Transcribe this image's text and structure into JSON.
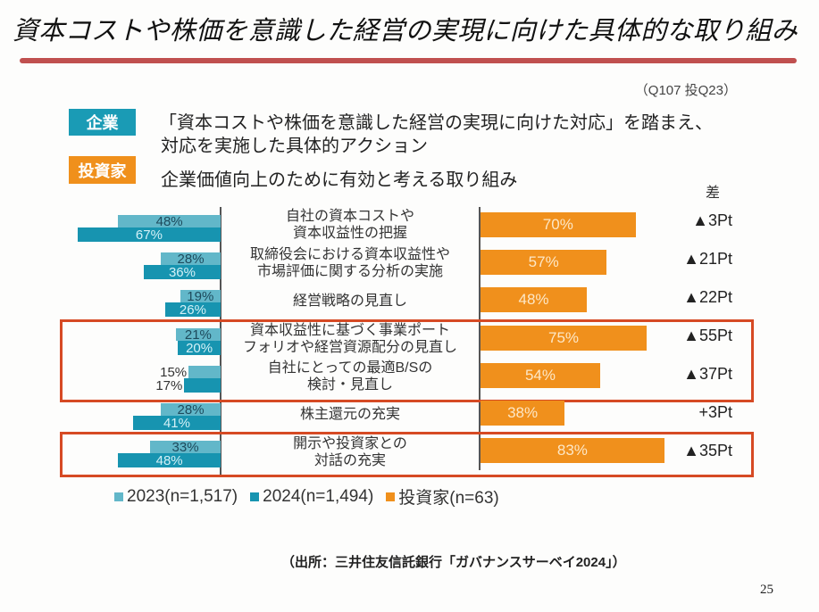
{
  "slide": {
    "title": "資本コストや株価を意識した経営の実現に向けた具体的な取り組み",
    "question_ref": "（Q107 投Q23）",
    "source": "（出所：三井住友信託銀行「ガバナンスサーベイ2024」）",
    "page_number": "25"
  },
  "header": {
    "company_badge": "企業",
    "company_desc_line1": "「資本コストや株価を意識した経営の実現に向けた対応」を踏まえ、",
    "company_desc_line2": "対応を実施した具体的アクション",
    "investor_badge": "投資家",
    "investor_desc": "企業価値向上のために有効と考える取り組み"
  },
  "colors": {
    "company": "#1a9bb5",
    "investor": "#f0901c",
    "series_2023": "#62b7c9",
    "series_2024": "#1794b0",
    "highlight_box": "#d64a24",
    "title_rule": "#c0504f"
  },
  "chart_data": {
    "type": "bar",
    "orientation": "horizontal-butterfly",
    "title": "",
    "xlabel": "",
    "ylabel": "",
    "xlim": [
      0,
      100
    ],
    "unit": "%",
    "grid": false,
    "legend_position": "bottom-left",
    "categories": [
      "自社の資本コストや\n資本収益性の把握",
      "取締役会における資本収益性や\n市場評価に関する分析の実施",
      "経営戦略の見直し",
      "資本収益性に基づく事業ポート\nフォリオや経営資源配分の見直し",
      "自社にとっての最適B/Sの\n検討・見直し",
      "株主還元の充実",
      "開示や投資家との\n対話の充実"
    ],
    "series": [
      {
        "name": "2023(n=1,517)",
        "side": "left",
        "color": "#62b7c9",
        "values": [
          48,
          28,
          19,
          21,
          15,
          28,
          33
        ],
        "labels": [
          "48%",
          "28%",
          "19%",
          "21%",
          "15%",
          "28%",
          "33%"
        ]
      },
      {
        "name": "2024(n=1,494)",
        "side": "left",
        "color": "#1794b0",
        "values": [
          67,
          36,
          26,
          20,
          17,
          41,
          48
        ],
        "labels": [
          "67%",
          "36%",
          "26%",
          "20%",
          "17%",
          "41%",
          "48%"
        ]
      },
      {
        "name": "投資家(n=63)",
        "side": "right",
        "color": "#f0901c",
        "values": [
          70,
          57,
          48,
          75,
          54,
          38,
          83
        ],
        "labels": [
          "70%",
          "57%",
          "48%",
          "75%",
          "54%",
          "38%",
          "83%"
        ]
      }
    ],
    "difference_header": "差",
    "differences": [
      "▲3Pt",
      "▲21Pt",
      "▲22Pt",
      "▲55Pt",
      "▲37Pt",
      "+3Pt",
      "▲35Pt"
    ],
    "highlighted_row_groups": [
      [
        3,
        4
      ],
      [
        6
      ]
    ]
  }
}
